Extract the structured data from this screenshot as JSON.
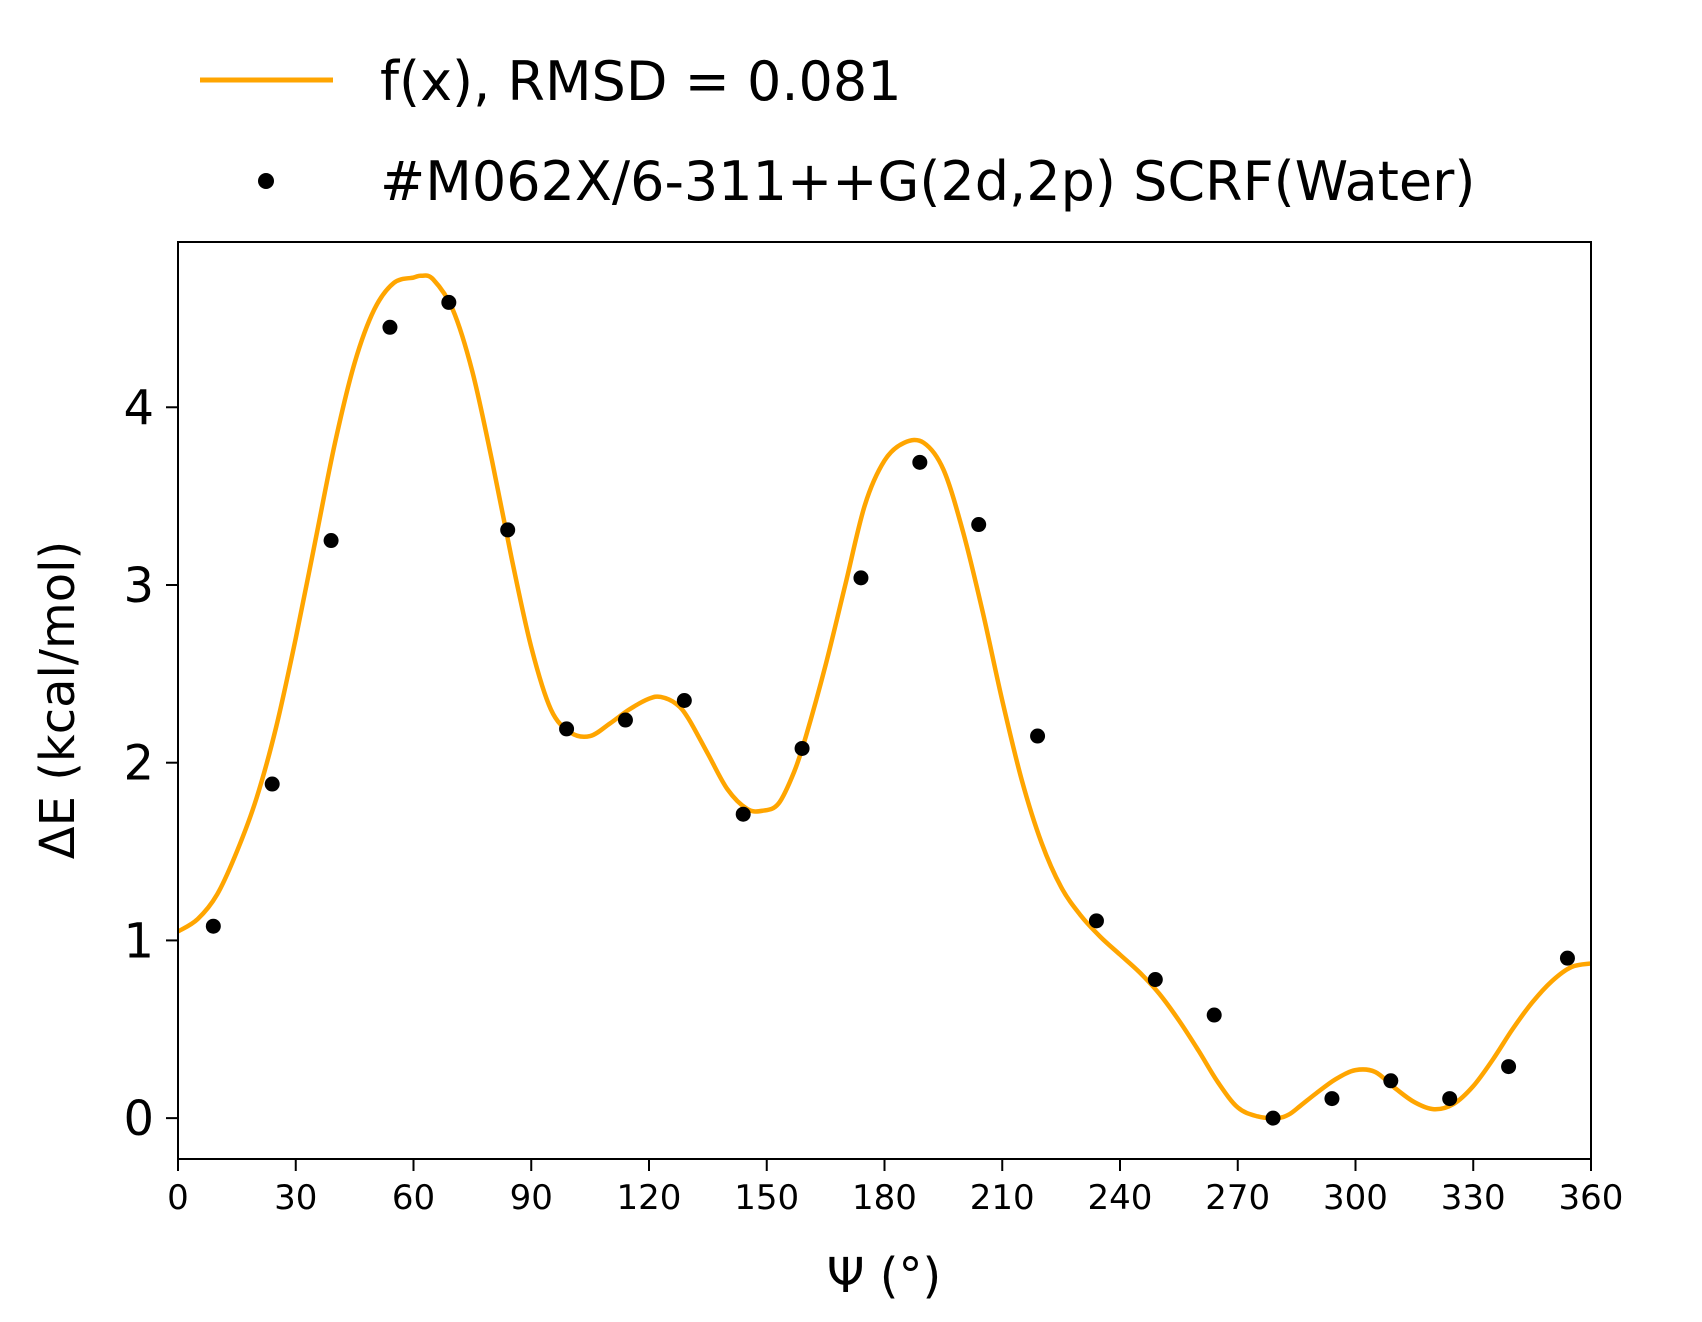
{
  "chart_data": {
    "type": "scatter",
    "xlabel": "Ψ (°)",
    "ylabel": "ΔE (kcal/mol)",
    "xlim": [
      0,
      360
    ],
    "ylim": [
      -0.23,
      4.93
    ],
    "xticks": [
      0,
      30,
      60,
      90,
      120,
      150,
      180,
      210,
      240,
      270,
      300,
      330,
      360
    ],
    "yticks": [
      0,
      1,
      2,
      3,
      4
    ],
    "grid": false,
    "legend_position": "top",
    "series": [
      {
        "name": "f(x), RMSD = 0.081",
        "kind": "line",
        "color": "#FFA500",
        "x": [
          0,
          5,
          10,
          15,
          20,
          25,
          30,
          35,
          40,
          45,
          50,
          55,
          60,
          62,
          65,
          70,
          75,
          80,
          85,
          90,
          95,
          100,
          105,
          110,
          115,
          120,
          123,
          127,
          130,
          135,
          140,
          145,
          149,
          153,
          157,
          160,
          165,
          170,
          175,
          180,
          185,
          190,
          195,
          200,
          205,
          210,
          215,
          220,
          225,
          230,
          235,
          240,
          245,
          250,
          255,
          260,
          265,
          270,
          275,
          280,
          283,
          286,
          290,
          295,
          300,
          305,
          310,
          315,
          320,
          325,
          330,
          335,
          340,
          345,
          350,
          355,
          360
        ],
        "y": [
          1.05,
          1.12,
          1.26,
          1.5,
          1.8,
          2.2,
          2.7,
          3.25,
          3.8,
          4.25,
          4.55,
          4.7,
          4.73,
          4.74,
          4.72,
          4.55,
          4.2,
          3.7,
          3.15,
          2.65,
          2.3,
          2.17,
          2.15,
          2.22,
          2.3,
          2.36,
          2.37,
          2.33,
          2.25,
          2.05,
          1.85,
          1.74,
          1.73,
          1.77,
          1.95,
          2.15,
          2.55,
          3.0,
          3.45,
          3.7,
          3.8,
          3.8,
          3.65,
          3.3,
          2.85,
          2.35,
          1.9,
          1.55,
          1.3,
          1.14,
          1.02,
          0.92,
          0.82,
          0.7,
          0.55,
          0.38,
          0.2,
          0.06,
          0.01,
          0.0,
          0.02,
          0.07,
          0.14,
          0.22,
          0.27,
          0.26,
          0.17,
          0.09,
          0.05,
          0.08,
          0.18,
          0.33,
          0.5,
          0.65,
          0.77,
          0.85,
          0.87
        ]
      },
      {
        "name": "#M062X/6-311++G(2d,2p) SCRF(Water)",
        "kind": "scatter",
        "color": "#000000",
        "x": [
          9,
          24,
          39,
          54,
          69,
          84,
          99,
          114,
          129,
          144,
          159,
          174,
          189,
          204,
          219,
          234,
          249,
          264,
          279,
          294,
          309,
          324,
          339,
          354
        ],
        "y": [
          1.08,
          1.88,
          3.25,
          4.45,
          4.59,
          3.31,
          2.19,
          2.24,
          2.35,
          1.71,
          2.08,
          3.04,
          3.69,
          3.34,
          2.15,
          1.11,
          0.78,
          0.58,
          0.0,
          0.11,
          0.21,
          0.11,
          0.29,
          0.9
        ]
      }
    ]
  }
}
